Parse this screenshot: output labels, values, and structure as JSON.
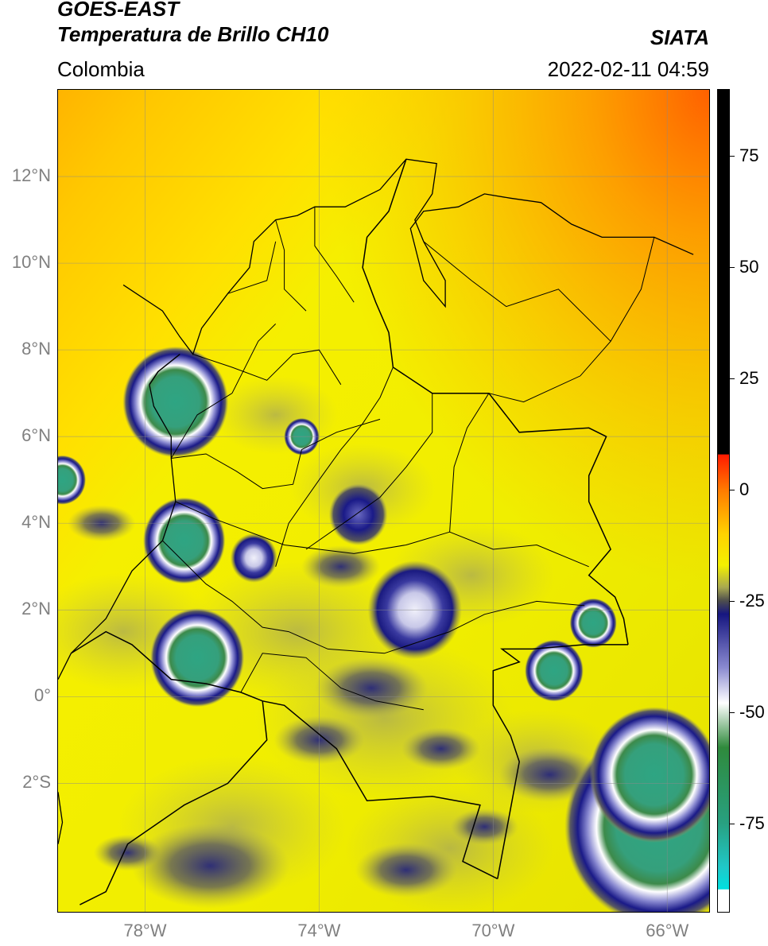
{
  "header": {
    "satellite": "GOES-EAST",
    "product": "Temperatura de Brillo CH10",
    "region": "Colombia",
    "agency": "SIATA",
    "datetime": "2022-02-11 04:59"
  },
  "map": {
    "lon_range": [
      -80.0,
      -65.0
    ],
    "lat_range": [
      -5.0,
      14.0
    ],
    "lat_labels": [
      "12°N",
      "10°N",
      "8°N",
      "6°N",
      "4°N",
      "2°N",
      "0°",
      "2°S"
    ],
    "lat_values": [
      12,
      10,
      8,
      6,
      4,
      2,
      0,
      -2
    ],
    "lon_labels": [
      "78°W",
      "74°W",
      "70°W",
      "66°W"
    ],
    "lon_values": [
      -78,
      -74,
      -70,
      -66
    ],
    "grid": true,
    "colors": {
      "warm": "#f7f200",
      "hot": "#ff9a00",
      "deep": "#ff6000",
      "cloud_grey": "#8c8c6e",
      "cloud_blue": "#1b1c8a",
      "cloud_white": "#e6e6f2",
      "core": "#2fa083"
    }
  },
  "colorbar": {
    "range": [
      -95,
      90
    ],
    "tick_labels": [
      "75",
      "50",
      "25",
      "0",
      "-25",
      "-50",
      "-75"
    ],
    "tick_values": [
      75,
      50,
      25,
      0,
      -25,
      -50,
      -75
    ],
    "stops": [
      {
        "v": 90,
        "c": "#000000"
      },
      {
        "v": 8,
        "c": "#000000"
      },
      {
        "v": 7.9,
        "c": "#ff1a00"
      },
      {
        "v": 0,
        "c": "#ff7a00"
      },
      {
        "v": -10,
        "c": "#ffd200"
      },
      {
        "v": -17,
        "c": "#f3f000"
      },
      {
        "v": -22,
        "c": "#a8a850"
      },
      {
        "v": -25,
        "c": "#4e4e4e"
      },
      {
        "v": -28,
        "c": "#161680"
      },
      {
        "v": -40,
        "c": "#8a8ad0"
      },
      {
        "v": -48,
        "c": "#ffffff"
      },
      {
        "v": -58,
        "c": "#2f8a3c"
      },
      {
        "v": -75,
        "c": "#28a080"
      },
      {
        "v": -85,
        "c": "#20c8c8"
      },
      {
        "v": -89.9,
        "c": "#00e0e0"
      },
      {
        "v": -90,
        "c": "#ffffff"
      },
      {
        "v": -95,
        "c": "#ffffff"
      }
    ]
  },
  "clouds": [
    {
      "lon": -77.3,
      "lat": 6.8,
      "r": 0.9,
      "type": "core"
    },
    {
      "lon": -74.4,
      "lat": 6.0,
      "r": 0.3,
      "type": "core"
    },
    {
      "lon": -77.1,
      "lat": 3.6,
      "r": 0.7,
      "type": "core"
    },
    {
      "lon": -76.8,
      "lat": 0.9,
      "r": 0.8,
      "type": "core"
    },
    {
      "lon": -75.5,
      "lat": 3.2,
      "r": 0.4,
      "type": "white"
    },
    {
      "lon": -71.8,
      "lat": 2.0,
      "r": 0.8,
      "type": "white"
    },
    {
      "lon": -73.1,
      "lat": 4.2,
      "r": 0.5,
      "type": "blue"
    },
    {
      "lon": -68.6,
      "lat": 0.6,
      "r": 0.5,
      "type": "core"
    },
    {
      "lon": -67.7,
      "lat": 1.7,
      "r": 0.4,
      "type": "core"
    },
    {
      "lon": -66.2,
      "lat": -3.0,
      "r": 1.6,
      "type": "core"
    },
    {
      "lon": -66.3,
      "lat": -1.8,
      "r": 1.1,
      "type": "core"
    },
    {
      "lon": -79.9,
      "lat": 5.0,
      "r": 0.4,
      "type": "core"
    }
  ],
  "coast": [
    [
      [
        -78.5,
        9.5
      ],
      [
        -77.6,
        8.9
      ],
      [
        -77.2,
        8.3
      ],
      [
        -76.9,
        7.9
      ],
      [
        -76.7,
        8.5
      ],
      [
        -76.1,
        9.3
      ],
      [
        -75.6,
        9.9
      ],
      [
        -75.5,
        10.5
      ],
      [
        -75.0,
        11.0
      ],
      [
        -74.5,
        11.1
      ],
      [
        -74.1,
        11.3
      ],
      [
        -73.4,
        11.3
      ],
      [
        -72.6,
        11.7
      ],
      [
        -72.0,
        12.4
      ],
      [
        -71.3,
        12.3
      ],
      [
        -71.4,
        11.6
      ],
      [
        -71.8,
        11.0
      ],
      [
        -71.6,
        10.5
      ],
      [
        -71.1,
        9.6
      ],
      [
        -71.1,
        9.0
      ],
      [
        -71.6,
        9.6
      ],
      [
        -71.9,
        10.8
      ],
      [
        -71.6,
        11.2
      ],
      [
        -70.8,
        11.3
      ],
      [
        -70.2,
        11.6
      ],
      [
        -69.6,
        11.5
      ],
      [
        -68.9,
        11.4
      ],
      [
        -68.2,
        10.9
      ],
      [
        -67.5,
        10.6
      ],
      [
        -66.3,
        10.6
      ],
      [
        -65.4,
        10.2
      ]
    ],
    [
      [
        -77.9,
        7.2
      ],
      [
        -77.8,
        6.7
      ],
      [
        -77.4,
        6.0
      ],
      [
        -77.4,
        5.5
      ],
      [
        -77.3,
        4.5
      ],
      [
        -77.6,
        3.6
      ],
      [
        -78.3,
        2.9
      ],
      [
        -78.9,
        1.8
      ],
      [
        -79.7,
        1.0
      ],
      [
        -80.0,
        0.4
      ]
    ],
    [
      [
        -80.0,
        -2.2
      ],
      [
        -79.9,
        -2.9
      ],
      [
        -80.0,
        -3.4
      ]
    ]
  ],
  "borders": [
    [
      [
        -77.2,
        7.9
      ],
      [
        -77.7,
        7.5
      ],
      [
        -77.9,
        7.2
      ]
    ],
    [
      [
        -72.0,
        12.4
      ],
      [
        -72.4,
        11.2
      ],
      [
        -72.9,
        10.6
      ],
      [
        -73.0,
        9.9
      ],
      [
        -72.7,
        9.1
      ],
      [
        -72.4,
        8.4
      ],
      [
        -72.3,
        7.6
      ],
      [
        -71.4,
        7.0
      ],
      [
        -70.1,
        7.0
      ],
      [
        -69.4,
        6.1
      ],
      [
        -67.8,
        6.2
      ],
      [
        -67.4,
        6.0
      ],
      [
        -67.8,
        5.1
      ],
      [
        -67.8,
        4.5
      ],
      [
        -67.3,
        3.4
      ],
      [
        -67.8,
        2.8
      ],
      [
        -67.2,
        2.3
      ],
      [
        -67.0,
        1.8
      ],
      [
        -66.9,
        1.2
      ]
    ],
    [
      [
        -66.9,
        1.2
      ],
      [
        -67.9,
        1.2
      ],
      [
        -69.1,
        1.1
      ],
      [
        -69.8,
        1.1
      ],
      [
        -69.4,
        0.8
      ],
      [
        -70.0,
        0.6
      ],
      [
        -70.0,
        -0.2
      ],
      [
        -69.6,
        -0.9
      ],
      [
        -69.4,
        -1.5
      ],
      [
        -69.9,
        -4.2
      ]
    ],
    [
      [
        -69.9,
        -4.2
      ],
      [
        -70.7,
        -3.8
      ],
      [
        -70.3,
        -2.5
      ],
      [
        -71.4,
        -2.3
      ],
      [
        -72.9,
        -2.4
      ],
      [
        -73.6,
        -1.2
      ],
      [
        -74.8,
        -0.2
      ],
      [
        -75.3,
        -0.1
      ],
      [
        -75.8,
        0.1
      ],
      [
        -76.6,
        0.3
      ],
      [
        -77.4,
        0.4
      ],
      [
        -78.3,
        1.2
      ],
      [
        -78.9,
        1.5
      ],
      [
        -79.7,
        1.0
      ]
    ],
    [
      [
        -75.3,
        -0.1
      ],
      [
        -75.2,
        -1.0
      ],
      [
        -76.1,
        -2.0
      ],
      [
        -77.1,
        -2.5
      ],
      [
        -78.4,
        -3.4
      ],
      [
        -78.9,
        -4.5
      ],
      [
        -79.5,
        -4.8
      ]
    ]
  ],
  "dept": [
    [
      [
        -76.1,
        9.3
      ],
      [
        -75.2,
        9.6
      ],
      [
        -75.0,
        10.5
      ]
    ],
    [
      [
        -75.0,
        11.0
      ],
      [
        -74.8,
        10.3
      ],
      [
        -74.8,
        9.4
      ],
      [
        -74.3,
        8.9
      ]
    ],
    [
      [
        -74.1,
        11.3
      ],
      [
        -74.1,
        10.4
      ],
      [
        -73.6,
        9.7
      ],
      [
        -73.2,
        9.1
      ]
    ],
    [
      [
        -76.9,
        7.9
      ],
      [
        -76.0,
        7.6
      ],
      [
        -75.2,
        7.3
      ],
      [
        -74.6,
        7.9
      ],
      [
        -74.0,
        8.0
      ],
      [
        -73.5,
        7.2
      ]
    ],
    [
      [
        -77.4,
        5.5
      ],
      [
        -76.6,
        5.6
      ],
      [
        -75.9,
        5.2
      ],
      [
        -75.3,
        4.8
      ],
      [
        -74.6,
        4.9
      ],
      [
        -74.4,
        5.7
      ],
      [
        -73.6,
        6.1
      ],
      [
        -72.6,
        6.4
      ]
    ],
    [
      [
        -77.3,
        4.5
      ],
      [
        -76.4,
        4.1
      ],
      [
        -75.6,
        3.8
      ],
      [
        -74.8,
        3.5
      ],
      [
        -74.0,
        3.4
      ],
      [
        -73.2,
        3.3
      ],
      [
        -72.0,
        3.5
      ],
      [
        -71.0,
        3.8
      ]
    ],
    [
      [
        -77.6,
        3.6
      ],
      [
        -76.6,
        2.6
      ],
      [
        -76.0,
        2.2
      ],
      [
        -75.3,
        1.6
      ],
      [
        -74.7,
        1.5
      ],
      [
        -73.8,
        1.1
      ],
      [
        -72.5,
        1.0
      ],
      [
        -71.0,
        1.5
      ]
    ],
    [
      [
        -75.8,
        0.1
      ],
      [
        -75.3,
        1.0
      ],
      [
        -74.3,
        0.9
      ],
      [
        -73.5,
        0.2
      ],
      [
        -72.7,
        -0.1
      ],
      [
        -71.6,
        -0.3
      ]
    ],
    [
      [
        -72.3,
        7.6
      ],
      [
        -72.6,
        6.9
      ],
      [
        -73.0,
        6.3
      ],
      [
        -73.5,
        5.7
      ],
      [
        -74.0,
        5.0
      ],
      [
        -74.7,
        4.0
      ],
      [
        -75.0,
        3.0
      ]
    ],
    [
      [
        -71.4,
        7.0
      ],
      [
        -71.4,
        6.1
      ],
      [
        -72.0,
        5.3
      ],
      [
        -72.6,
        4.6
      ],
      [
        -73.3,
        4.1
      ],
      [
        -74.3,
        3.4
      ]
    ],
    [
      [
        -70.1,
        7.0
      ],
      [
        -70.6,
        6.2
      ],
      [
        -70.9,
        5.3
      ],
      [
        -71.0,
        3.8
      ],
      [
        -70.0,
        3.4
      ],
      [
        -69.0,
        3.5
      ],
      [
        -67.8,
        3.0
      ]
    ],
    [
      [
        -71.0,
        1.5
      ],
      [
        -70.2,
        1.9
      ],
      [
        -69.0,
        2.2
      ],
      [
        -67.9,
        2.1
      ]
    ],
    [
      [
        -77.4,
        5.5
      ],
      [
        -76.8,
        6.5
      ],
      [
        -76.0,
        7.0
      ],
      [
        -75.4,
        8.2
      ],
      [
        -75.0,
        8.6
      ]
    ],
    [
      [
        -66.3,
        10.6
      ],
      [
        -66.6,
        9.4
      ],
      [
        -67.3,
        8.2
      ],
      [
        -68.0,
        7.4
      ],
      [
        -69.3,
        6.8
      ],
      [
        -70.1,
        7.0
      ]
    ],
    [
      [
        -71.6,
        10.5
      ],
      [
        -70.5,
        9.6
      ],
      [
        -69.7,
        9.0
      ],
      [
        -68.5,
        9.4
      ],
      [
        -67.3,
        8.2
      ]
    ]
  ]
}
